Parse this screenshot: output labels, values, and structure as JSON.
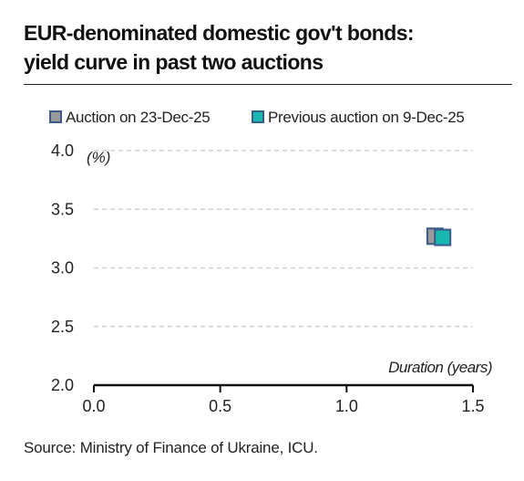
{
  "title": {
    "line1": "EUR-denominated domestic gov't bonds:",
    "line2": "yield curve in past two auctions"
  },
  "source": "Source: Ministry of Finance of Ukraine, ICU.",
  "chart_data": {
    "type": "scatter",
    "title": "EUR-denominated domestic gov't bonds: yield curve in past two auctions",
    "xlabel": "Duration (years)",
    "ylabel": "(%)",
    "xlim": [
      0,
      1.5
    ],
    "ylim": [
      2.0,
      4.0
    ],
    "x_ticks": [
      "0.0",
      "0.5",
      "1.0",
      "1.5"
    ],
    "y_ticks": [
      "4.0",
      "3.5",
      "3.0",
      "2.5",
      "2.0"
    ],
    "grid": "horizontal dashed",
    "legend_position": "top",
    "series": [
      {
        "name": "Auction on 23-Dec-25",
        "color": "#9a9a9a",
        "border": "#3b5a8c",
        "points": [
          {
            "x": 1.35,
            "y": 3.27
          }
        ]
      },
      {
        "name": "Previous auction on 9-Dec-25",
        "color": "#17b8b0",
        "border": "#3b5a8c",
        "points": [
          {
            "x": 1.38,
            "y": 3.26
          }
        ]
      }
    ]
  }
}
